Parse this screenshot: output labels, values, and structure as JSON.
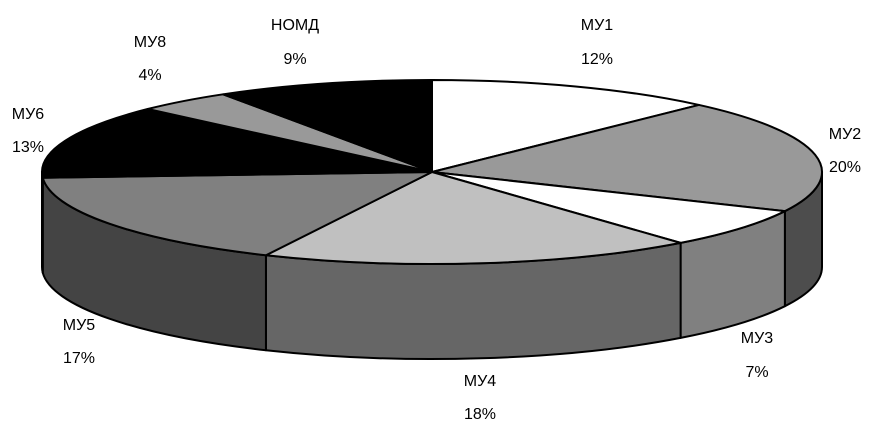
{
  "chart_data": {
    "type": "pie",
    "style": "3d",
    "title": "",
    "categories": [
      "МУ1",
      "МУ2",
      "МУ3",
      "МУ4",
      "МУ5",
      "МУ6",
      "МУ8",
      "НОМД"
    ],
    "values": [
      12,
      20,
      7,
      18,
      17,
      13,
      4,
      9
    ],
    "value_labels": [
      "12%",
      "20%",
      "7%",
      "18%",
      "17%",
      "13%",
      "4%",
      "9%"
    ],
    "colors": [
      "#ffffff",
      "#999999",
      "#ffffff",
      "#c0c0c0",
      "#808080",
      "#000000",
      "#999999",
      "#000000"
    ],
    "side_colors": [
      "#ffffff",
      "#4d4d4d",
      "#808080",
      "#666666",
      "#444444",
      "#000000",
      "#999999",
      "#000000"
    ],
    "legend": "none",
    "grid": false
  }
}
